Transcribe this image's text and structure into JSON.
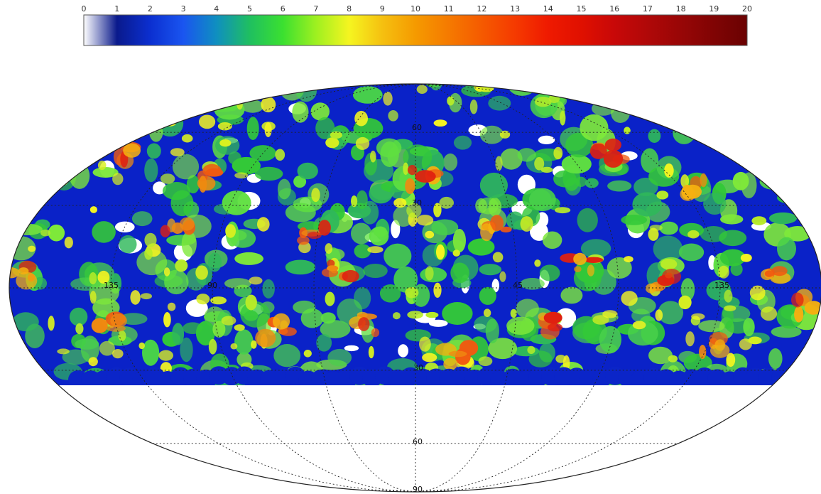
{
  "colorbar": {
    "ticks": [
      "0",
      "1",
      "2",
      "3",
      "4",
      "5",
      "6",
      "7",
      "8",
      "9",
      "10",
      "11",
      "12",
      "13",
      "14",
      "15",
      "16",
      "17",
      "18",
      "19",
      "20"
    ],
    "min": 0,
    "max": 20,
    "stops": [
      "#ffffff",
      "#0a1a8c",
      "#0b2fd0",
      "#1a55f0",
      "#0f8fc0",
      "#1fbf60",
      "#3be030",
      "#9ef020",
      "#f5f520",
      "#f5c010",
      "#f59a00",
      "#f57a00",
      "#f55a00",
      "#f53a00",
      "#ef1a00",
      "#e01000",
      "#c80808",
      "#b00808",
      "#980606",
      "#800404",
      "#6a0202"
    ]
  },
  "projection": {
    "type": "mollweide",
    "meridian_labels": [
      "135",
      "90",
      "",
      "45",
      "",
      "135"
    ],
    "parallel_labels": [
      "60",
      "30",
      "",
      "30",
      "60",
      "90"
    ],
    "visible_longitude_labels": [
      "135",
      "90",
      "45",
      "45",
      "135"
    ],
    "visible_latitude_labels": [
      "60",
      "30",
      "30",
      "60",
      "90"
    ],
    "gridline_style": "dotted",
    "map_colors": {
      "low": "#0a22c8",
      "mid": "#5fe040",
      "high": "#f05a10",
      "peak": "#e02010",
      "empty": "#ffffff"
    }
  },
  "labels": {
    "lon_135_left": "135",
    "lon_90_left": "90",
    "lon_45_right": "45",
    "lon_135_right": "135",
    "lat_60_north": "60",
    "lat_30_north": "30",
    "lat_30_south": "30",
    "lat_60_south": "60",
    "lat_90_south": "90"
  }
}
